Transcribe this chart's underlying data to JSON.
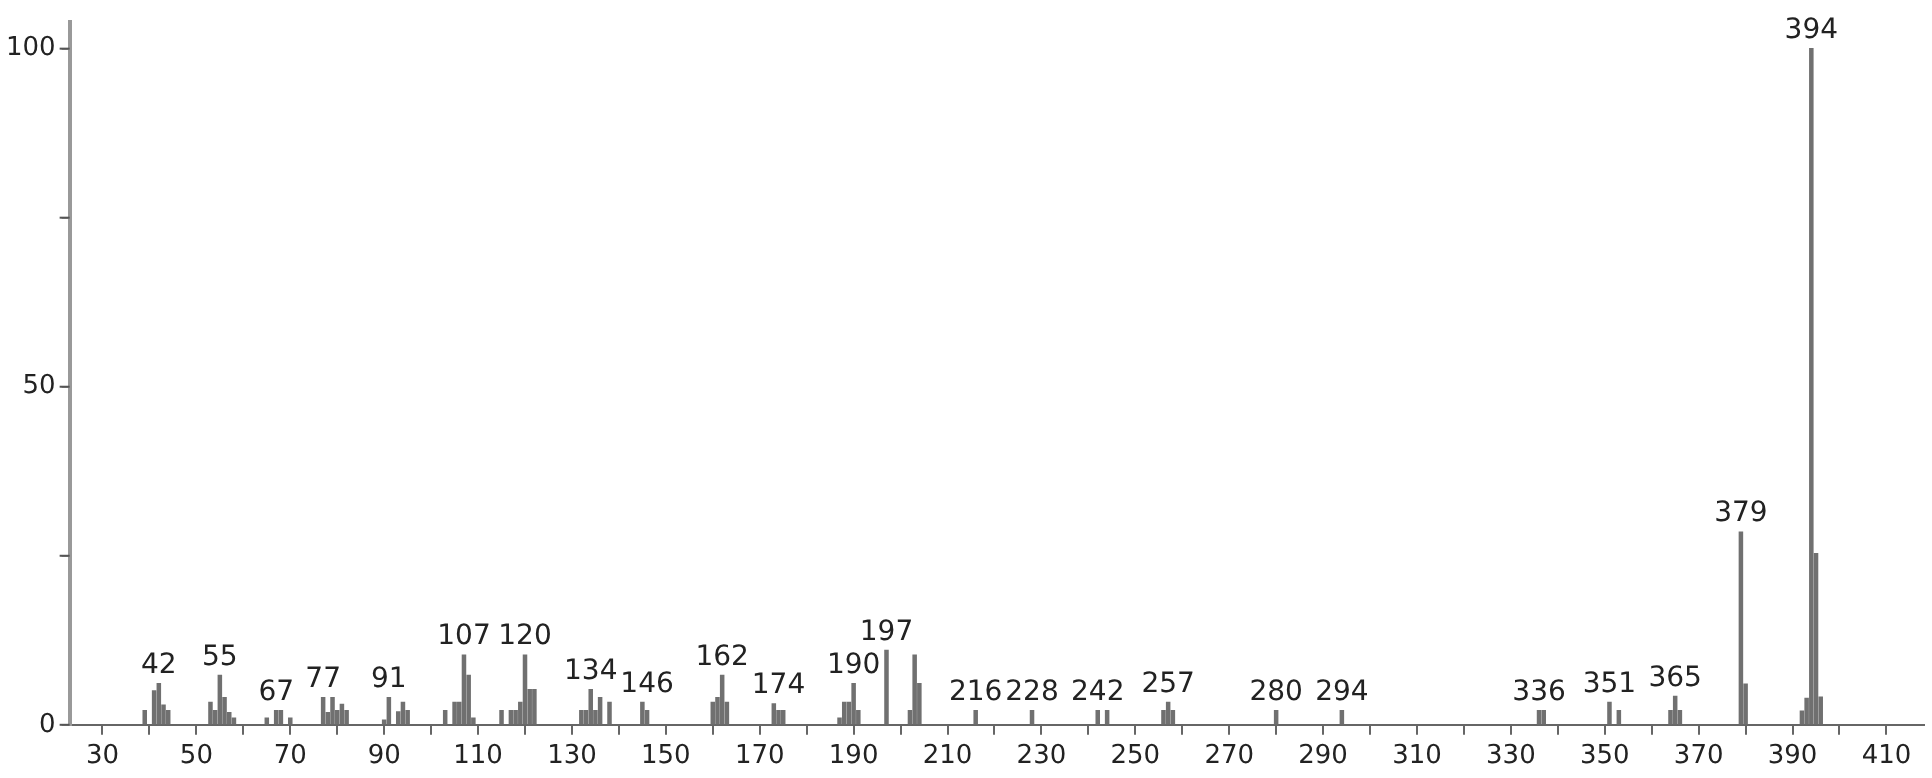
{
  "chart_data": {
    "type": "bar",
    "color": "#707070",
    "x": [
      39,
      41,
      42,
      43,
      44,
      53,
      54,
      55,
      56,
      57,
      58,
      65,
      67,
      68,
      70,
      77,
      78,
      79,
      80,
      81,
      82,
      90,
      91,
      93,
      94,
      95,
      103,
      105,
      106,
      107,
      108,
      109,
      115,
      117,
      118,
      119,
      120,
      121,
      122,
      132,
      133,
      134,
      135,
      136,
      138,
      145,
      146,
      160,
      161,
      162,
      163,
      173,
      174,
      175,
      187,
      188,
      189,
      190,
      191,
      197,
      202,
      203,
      204,
      216,
      228,
      242,
      244,
      256,
      257,
      258,
      280,
      294,
      336,
      337,
      351,
      353,
      364,
      365,
      366,
      379,
      380,
      392,
      393,
      394,
      395,
      396
    ],
    "values": [
      2.1,
      5.0,
      6.1,
      2.9,
      2.1,
      3.3,
      2.1,
      7.3,
      4.0,
      1.8,
      1.0,
      1.0,
      2.1,
      2.1,
      1.0,
      4.0,
      1.8,
      4.0,
      2.1,
      3.0,
      2.1,
      0.7,
      4.0,
      1.9,
      3.3,
      2.1,
      2.1,
      3.3,
      3.3,
      10.3,
      7.3,
      1.0,
      2.1,
      2.1,
      2.1,
      3.3,
      10.3,
      5.2,
      5.2,
      2.1,
      2.1,
      5.2,
      2.1,
      4.0,
      3.3,
      3.3,
      2.1,
      3.3,
      4.0,
      7.3,
      3.3,
      3.1,
      2.1,
      2.1,
      1.0,
      3.3,
      3.3,
      6.1,
      2.1,
      11.0,
      2.1,
      10.3,
      6.1,
      2.1,
      2.1,
      2.1,
      2.1,
      2.1,
      3.3,
      2.1,
      2.1,
      2.1,
      2.1,
      2.1,
      3.3,
      2.1,
      2.1,
      4.2,
      2.1,
      28.5,
      6.0,
      2.0,
      3.9,
      100,
      25.3,
      4.1
    ],
    "xlim": [
      23,
      418
    ],
    "xticks": [
      30,
      {
        "value": 40,
        "label": null
      },
      50,
      {
        "value": 60,
        "label": null
      },
      70,
      {
        "value": 80,
        "label": null
      },
      90,
      {
        "value": 100,
        "label": null
      },
      110,
      {
        "value": 120,
        "label": null
      },
      130,
      {
        "value": 140,
        "label": null
      },
      150,
      {
        "value": 160,
        "label": null
      },
      170,
      {
        "value": 180,
        "label": null
      },
      190,
      {
        "value": 200,
        "label": null
      },
      210,
      {
        "value": 220,
        "label": null
      },
      230,
      {
        "value": 240,
        "label": null
      },
      250,
      {
        "value": 260,
        "label": null
      },
      270,
      {
        "value": 280,
        "label": null
      },
      290,
      {
        "value": 300,
        "label": null
      },
      310,
      {
        "value": 320,
        "label": null
      },
      330,
      {
        "value": 340,
        "label": null
      },
      350,
      {
        "value": 360,
        "label": null
      },
      370,
      {
        "value": 380,
        "label": null
      },
      390,
      {
        "value": 400,
        "label": null
      },
      410
    ],
    "ylim": [
      0,
      104
    ],
    "yticks": [
      0,
      {
        "value": 25,
        "label": null
      },
      50,
      {
        "value": 75,
        "label": null
      },
      100
    ],
    "grid": false,
    "legend": false,
    "annotations": [
      {
        "text": "42",
        "x": 42,
        "y": 6.1
      },
      {
        "text": "55",
        "x": 55,
        "y": 7.3
      },
      {
        "text": "67",
        "x": 67,
        "y": 2.1
      },
      {
        "text": "77",
        "x": 77,
        "y": 4.0
      },
      {
        "text": "91",
        "x": 91,
        "y": 4.0
      },
      {
        "text": "107",
        "x": 107,
        "y": 10.3
      },
      {
        "text": "120",
        "x": 120,
        "y": 10.3
      },
      {
        "text": "134",
        "x": 134,
        "y": 5.2
      },
      {
        "text": "146",
        "x": 146,
        "y": 3.3
      },
      {
        "text": "162",
        "x": 162,
        "y": 7.3
      },
      {
        "text": "174",
        "x": 174,
        "y": 3.1
      },
      {
        "text": "190",
        "x": 190,
        "y": 6.1
      },
      {
        "text": "197",
        "x": 197,
        "y": 11.0
      },
      {
        "text": "216",
        "x": 216,
        "y": 2.1
      },
      {
        "text": "228",
        "x": 228,
        "y": 2.1
      },
      {
        "text": "242",
        "x": 242,
        "y": 2.1
      },
      {
        "text": "257",
        "x": 257,
        "y": 3.3
      },
      {
        "text": "280",
        "x": 280,
        "y": 2.1
      },
      {
        "text": "294",
        "x": 294,
        "y": 2.1
      },
      {
        "text": "336",
        "x": 336,
        "y": 2.1
      },
      {
        "text": "351",
        "x": 351,
        "y": 3.3
      },
      {
        "text": "365",
        "x": 365,
        "y": 4.2
      },
      {
        "text": "379",
        "x": 379,
        "y": 28.5
      },
      {
        "text": "394",
        "x": 394,
        "y": 100
      }
    ]
  }
}
